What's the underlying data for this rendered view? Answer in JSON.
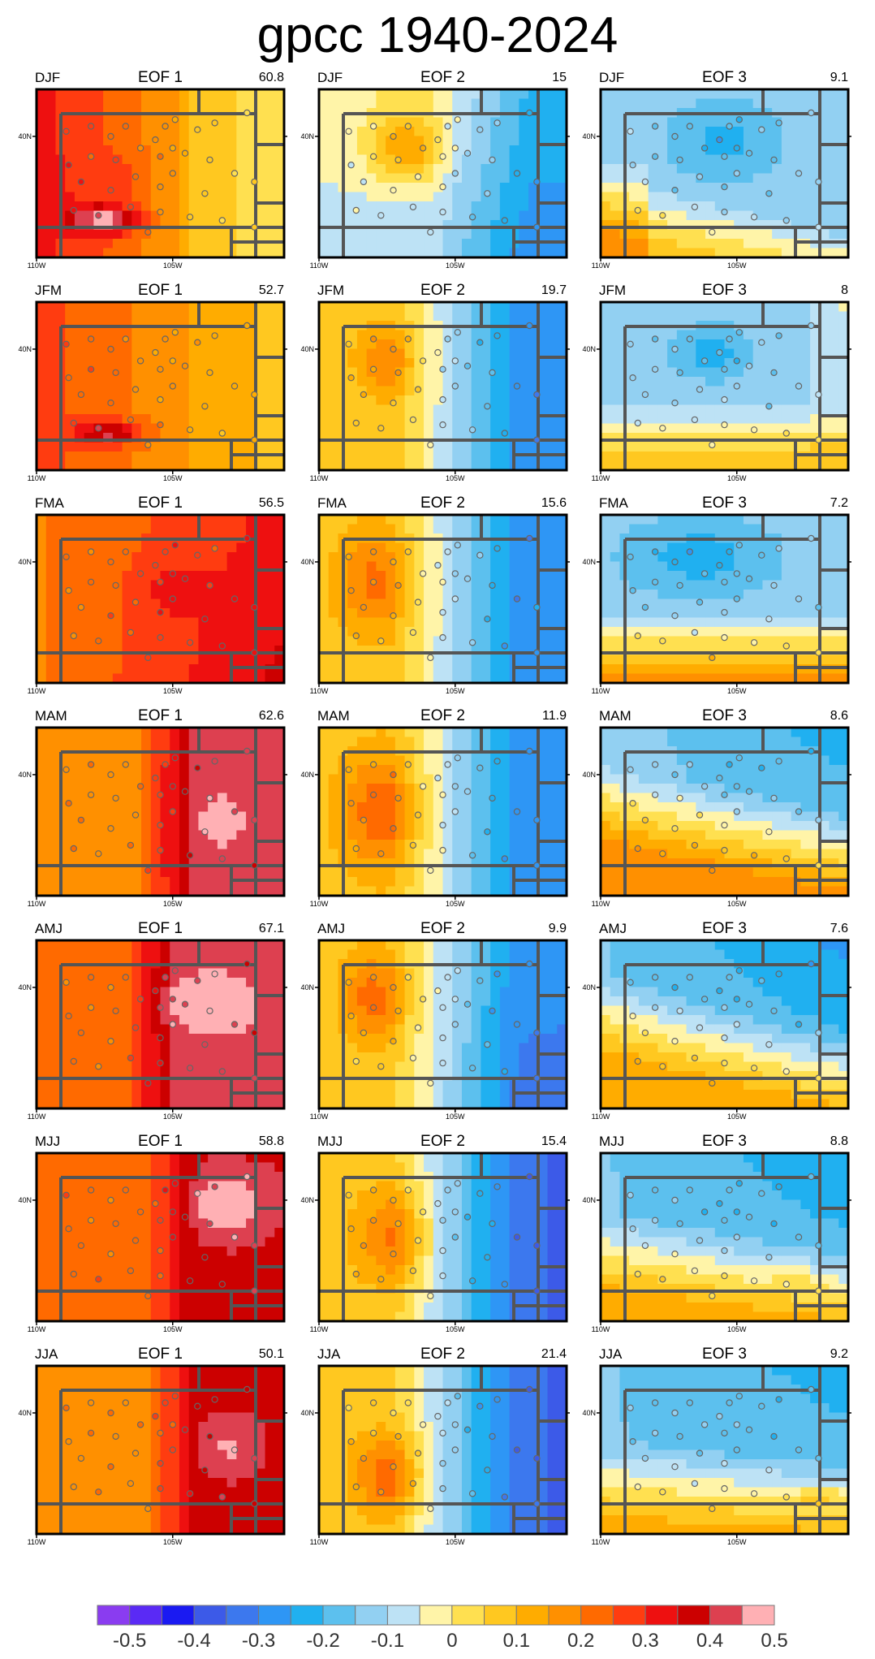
{
  "title": "gpcc 1940-2024",
  "chart_data": {
    "type": "heatmap",
    "layout": {
      "rows": 7,
      "cols": 3
    },
    "season_labels": [
      "DJF",
      "JFM",
      "FMA",
      "MAM",
      "AMJ",
      "MJJ",
      "JJA"
    ],
    "eof_labels": [
      "EOF 1",
      "EOF 2",
      "EOF 3"
    ],
    "x_ticks": [
      "110W",
      "105W"
    ],
    "y_ticks": [
      "40N"
    ],
    "panels": [
      {
        "season": "DJF",
        "eof": "EOF 1",
        "variance": "60.8"
      },
      {
        "season": "DJF",
        "eof": "EOF 2",
        "variance": "15"
      },
      {
        "season": "DJF",
        "eof": "EOF 3",
        "variance": "9.1"
      },
      {
        "season": "JFM",
        "eof": "EOF 1",
        "variance": "52.7"
      },
      {
        "season": "JFM",
        "eof": "EOF 2",
        "variance": "19.7"
      },
      {
        "season": "JFM",
        "eof": "EOF 3",
        "variance": "8"
      },
      {
        "season": "FMA",
        "eof": "EOF 1",
        "variance": "56.5"
      },
      {
        "season": "FMA",
        "eof": "EOF 2",
        "variance": "15.6"
      },
      {
        "season": "FMA",
        "eof": "EOF 3",
        "variance": "7.2"
      },
      {
        "season": "MAM",
        "eof": "EOF 1",
        "variance": "62.6"
      },
      {
        "season": "MAM",
        "eof": "EOF 2",
        "variance": "11.9"
      },
      {
        "season": "MAM",
        "eof": "EOF 3",
        "variance": "8.6"
      },
      {
        "season": "AMJ",
        "eof": "EOF 1",
        "variance": "67.1"
      },
      {
        "season": "AMJ",
        "eof": "EOF 2",
        "variance": "9.9"
      },
      {
        "season": "AMJ",
        "eof": "EOF 3",
        "variance": "7.6"
      },
      {
        "season": "MJJ",
        "eof": "EOF 1",
        "variance": "58.8"
      },
      {
        "season": "MJJ",
        "eof": "EOF 2",
        "variance": "15.4"
      },
      {
        "season": "MJJ",
        "eof": "EOF 3",
        "variance": "8.8"
      },
      {
        "season": "JJA",
        "eof": "EOF 1",
        "variance": "50.1"
      },
      {
        "season": "JJA",
        "eof": "EOF 2",
        "variance": "21.4"
      },
      {
        "season": "JJA",
        "eof": "EOF 3",
        "variance": "9.2"
      }
    ],
    "colorbar": {
      "labels": [
        "-0.5",
        "-0.4",
        "-0.3",
        "-0.2",
        "-0.1",
        "0",
        "0.1",
        "0.2",
        "0.3",
        "0.4",
        "0.5"
      ],
      "colors": [
        "#8a3cf0",
        "#5a2af5",
        "#1a1af2",
        "#3c5ae8",
        "#3c78ee",
        "#2e96f5",
        "#20b0f0",
        "#5cc0ee",
        "#92d0f2",
        "#bde2f5",
        "#fff4a8",
        "#ffe050",
        "#ffc820",
        "#ffac00",
        "#ff9000",
        "#ff6a00",
        "#ff3c10",
        "#ee1010",
        "#cc0000",
        "#dd4050",
        "#ffb0b4"
      ]
    },
    "colors": {
      "state_lines": "#555555",
      "station_edge": "#666666",
      "frame": "#000000"
    }
  }
}
